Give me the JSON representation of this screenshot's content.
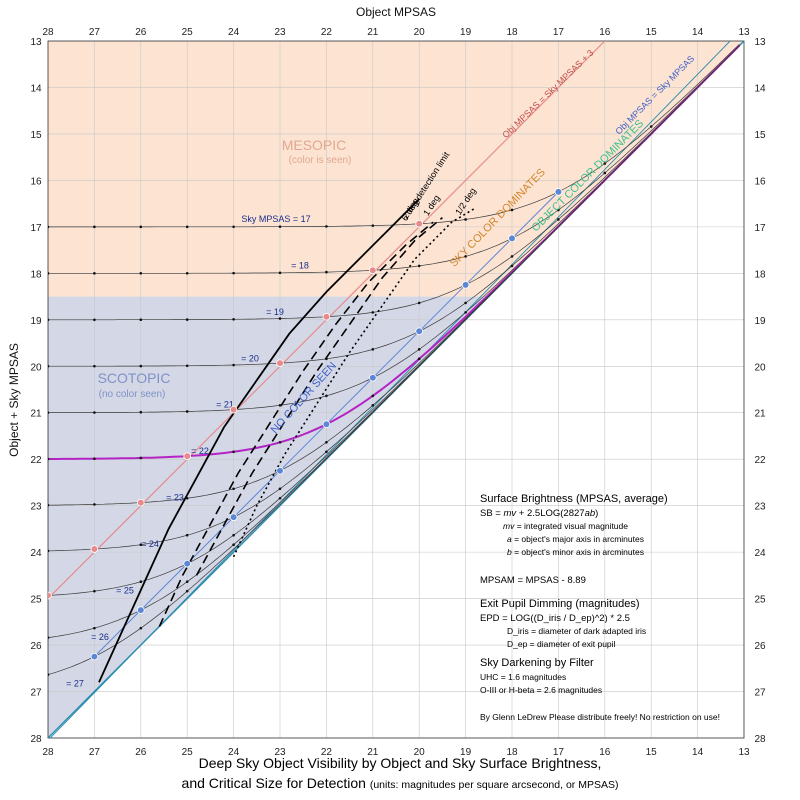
{
  "chart_data": {
    "type": "line",
    "title": "Deep Sky Object Visibility by Object and Sky Surface Brightness,",
    "subtitle": "and Critical Size for Detection",
    "units_note": "(units: magnitudes per square arcsecond, or MPSAS)",
    "xlabel": "Object MPSAS",
    "ylabel": "Object + Sky MPSAS",
    "xlim": [
      28,
      13
    ],
    "ylim": [
      13,
      28
    ],
    "x_ticks": [
      28,
      27,
      26,
      25,
      24,
      23,
      22,
      21,
      20,
      19,
      18,
      17,
      16,
      15,
      14,
      13
    ],
    "y_ticks": [
      13,
      14,
      15,
      16,
      17,
      18,
      19,
      20,
      21,
      22,
      23,
      24,
      25,
      26,
      27,
      28
    ],
    "grid": true,
    "sky_curves": {
      "sky_values": [
        17,
        18,
        19,
        20,
        21,
        22,
        23,
        24,
        25,
        26,
        27
      ],
      "labels": [
        "Sky MPSAS = 17",
        "= 18",
        "= 19",
        "= 20",
        "= 21",
        "= 22",
        "= 23",
        "= 24",
        "= 25",
        "= 26",
        "= 27"
      ],
      "highlighted": 22
    },
    "reference_lines": [
      {
        "name": "Obj MPSAS = Sky MPSAS + 3",
        "offset": 3
      },
      {
        "name": "Obj MPSAS = Sky MPSAS",
        "offset": 0
      }
    ],
    "detection_limits": [
      {
        "label": "6 deg  detection limit",
        "style": "solid",
        "points": [
          [
            26.9,
            26.8
          ],
          [
            26.4,
            25.7
          ],
          [
            25.9,
            24.6
          ],
          [
            25.4,
            23.5
          ],
          [
            24.8,
            22.4
          ],
          [
            24.2,
            21.3
          ],
          [
            23.5,
            20.3
          ],
          [
            22.8,
            19.3
          ],
          [
            22.0,
            18.4
          ],
          [
            21.2,
            17.6
          ],
          [
            20.6,
            17.0
          ],
          [
            20.0,
            16.4
          ]
        ]
      },
      {
        "label": "2 deg",
        "style": "dashed",
        "points": [
          [
            25.6,
            25.6
          ],
          [
            25.1,
            24.5
          ],
          [
            24.5,
            23.4
          ],
          [
            23.9,
            22.3
          ],
          [
            23.2,
            21.2
          ],
          [
            22.5,
            20.1
          ],
          [
            21.8,
            19.1
          ],
          [
            21.1,
            18.2
          ],
          [
            20.3,
            17.4
          ],
          [
            19.7,
            16.9
          ]
        ]
      },
      {
        "label": "1 deg",
        "style": "dashed",
        "points": [
          [
            24.8,
            24.5
          ],
          [
            24.2,
            23.4
          ],
          [
            23.6,
            22.3
          ],
          [
            22.9,
            21.2
          ],
          [
            22.2,
            20.1
          ],
          [
            21.5,
            19.1
          ],
          [
            20.8,
            18.1
          ],
          [
            20.1,
            17.3
          ],
          [
            19.5,
            16.8
          ]
        ]
      },
      {
        "label": "1/2 deg",
        "style": "dotted",
        "points": [
          [
            24.0,
            24.1
          ],
          [
            23.5,
            23.0
          ],
          [
            22.9,
            21.9
          ],
          [
            22.2,
            20.8
          ],
          [
            21.5,
            19.7
          ],
          [
            20.8,
            18.7
          ],
          [
            20.1,
            17.7
          ],
          [
            19.3,
            16.9
          ],
          [
            18.8,
            16.6
          ]
        ]
      }
    ],
    "regions": [
      {
        "name": "MESOPIC",
        "note": "(color is seen)"
      },
      {
        "name": "SCOTOPIC",
        "note": "(no color seen)"
      },
      {
        "name": "NO COLOR SEEN"
      },
      {
        "name": "SKY COLOR DOMINATES"
      },
      {
        "name": "OBJECT COLOR DOMINATES"
      }
    ]
  },
  "info": {
    "sb_title": "Surface Brightness (MPSAS, average)",
    "sb_formula_a": "SB = ",
    "sb_formula_mv": "mv",
    "sb_formula_b": " + 2.5LOG(2827",
    "sb_formula_ab": "ab",
    "sb_formula_c": ")",
    "mv_sym": "mv",
    "mv_def": " = integrated visual magnitude",
    "a_sym": "a",
    "a_def": " = object's major axis in arcminutes",
    "b_sym": "b",
    "b_def": " = object's minor axis in arcminutes",
    "mpsam": "MPSAM = MPSAS - 8.89",
    "epd_title": "Exit Pupil Dimming (magnitudes)",
    "epd_formula": "EPD = LOG((D_iris / D_ep)^2) * 2.5",
    "d_iris": "D_iris = diameter of dark adapted iris",
    "d_ep": "D_ep = diameter of exit pupil",
    "filter_title": "Sky Darkening by Filter",
    "uhc": "UHC = 1.6 magnitudes",
    "oiii": "O-III or H-beta = 2.6 magnitudes",
    "credit": "By Glenn LeDrew    Please distribute freely! No restriction on use!"
  },
  "colors": {
    "mesopic": "#fce3d2",
    "scotopic": "#d3d7e6",
    "object_color": "#bff2e3",
    "red_line": "#e88a8a",
    "blue_line": "#5b87d6",
    "teal_line": "#2a8cae",
    "magenta": "#b424c4",
    "mesopic_text": "#e0a890",
    "scotopic_text": "#7f93c6",
    "sky_color_text": "#d2872e",
    "object_color_text": "#3ec08e",
    "no_color_text": "#3f61c8",
    "grid": "#c8c8c8"
  }
}
